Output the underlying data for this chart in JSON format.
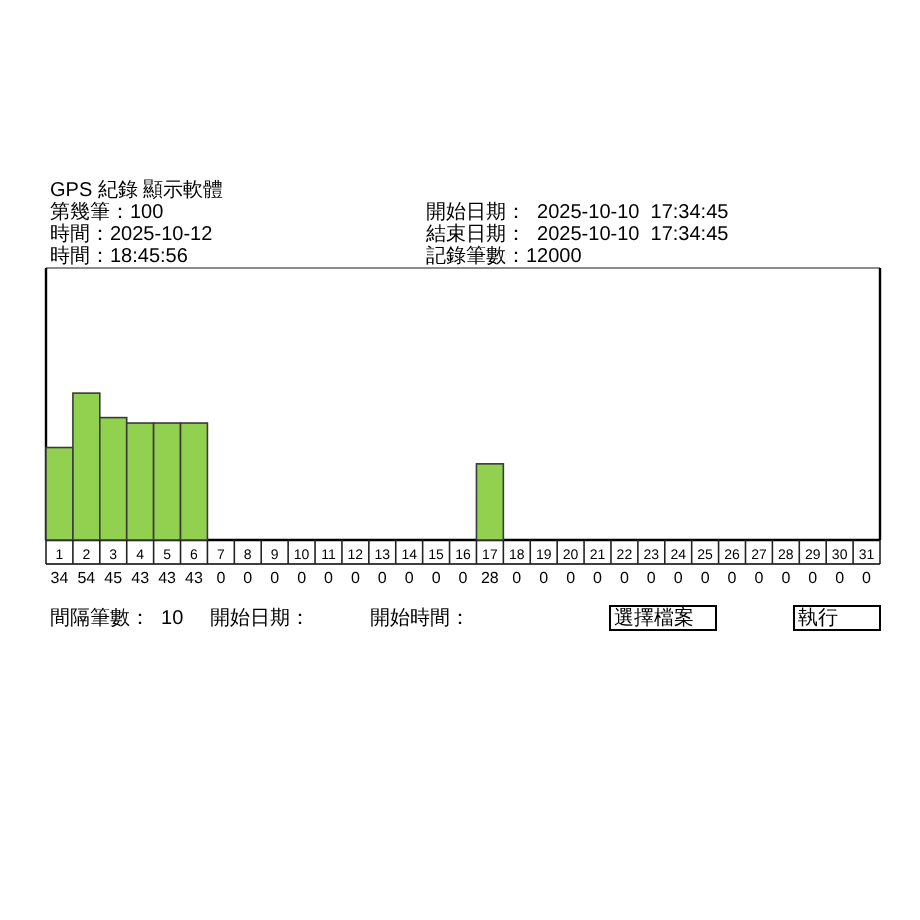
{
  "chart_data": {
    "type": "bar",
    "title": "GPS 紀錄 顯示軟體",
    "categories": [
      "1",
      "2",
      "3",
      "4",
      "5",
      "6",
      "7",
      "8",
      "9",
      "10",
      "11",
      "12",
      "13",
      "14",
      "15",
      "16",
      "17",
      "18",
      "19",
      "20",
      "21",
      "22",
      "23",
      "24",
      "25",
      "26",
      "27",
      "28",
      "29",
      "30",
      "31"
    ],
    "values": [
      34,
      54,
      45,
      43,
      43,
      43,
      0,
      0,
      0,
      0,
      0,
      0,
      0,
      0,
      0,
      0,
      28,
      0,
      0,
      0,
      0,
      0,
      0,
      0,
      0,
      0,
      0,
      0,
      0,
      0,
      0
    ],
    "color": "#92d050",
    "ylim": [
      0,
      100
    ],
    "tick_labels": "x",
    "data_labels": true,
    "annotations": [
      "第幾筆：100",
      "時間：2025-10-12",
      "時間：18:45:56",
      "開始日期：  2025-10-10  17:34:45",
      "結束日期：  2025-10-10  17:34:45",
      "記錄筆數：12000",
      "間隔筆數：  10",
      "開始日期：",
      "開始時間：",
      "選擇檔案",
      "執行"
    ]
  }
}
